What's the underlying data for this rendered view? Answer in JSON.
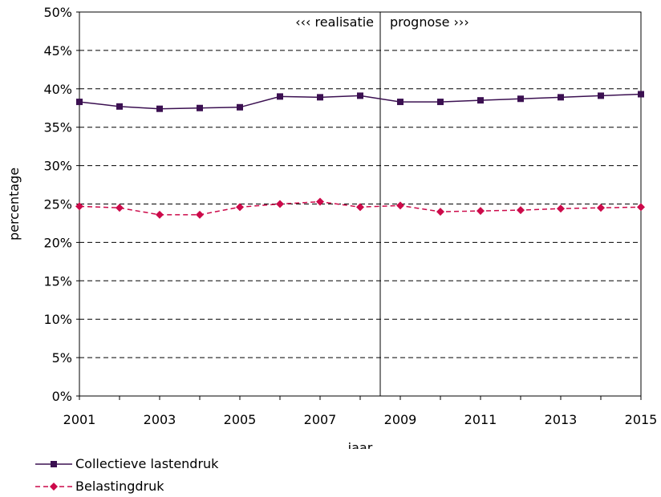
{
  "chart_data": {
    "type": "line",
    "xlabel": "jaar",
    "ylabel": "percentage",
    "x": [
      2001,
      2002,
      2003,
      2004,
      2005,
      2006,
      2007,
      2008,
      2009,
      2010,
      2011,
      2012,
      2013,
      2014,
      2015
    ],
    "x_tick_labels": [
      "2001",
      "2003",
      "2005",
      "2007",
      "2009",
      "2011",
      "2013",
      "2015"
    ],
    "ylim": [
      0,
      50
    ],
    "y_tick_labels": [
      "0%",
      "5%",
      "10%",
      "15%",
      "20%",
      "25%",
      "30%",
      "35%",
      "40%",
      "45%",
      "50%"
    ],
    "grid": "horizontal dashed",
    "legend_placement": "bottom-left",
    "divider": {
      "x": 2008.5,
      "left_label": "‹‹‹ realisatie",
      "right_label": "prognose ›››"
    },
    "series": [
      {
        "name": "Collectieve lastendruk",
        "color": "#3b1051",
        "marker": "square",
        "line_style": "solid",
        "values": [
          38.3,
          37.7,
          37.4,
          37.5,
          37.6,
          39.0,
          38.9,
          39.1,
          38.3,
          38.3,
          38.5,
          38.7,
          38.9,
          39.1,
          39.3
        ]
      },
      {
        "name": "Belastingdruk",
        "color": "#cc0a4a",
        "marker": "diamond",
        "line_style": "dashed",
        "values": [
          24.7,
          24.5,
          23.6,
          23.6,
          24.6,
          25.0,
          25.3,
          24.6,
          24.8,
          24.0,
          24.1,
          24.2,
          24.4,
          24.5,
          24.6
        ]
      }
    ]
  }
}
